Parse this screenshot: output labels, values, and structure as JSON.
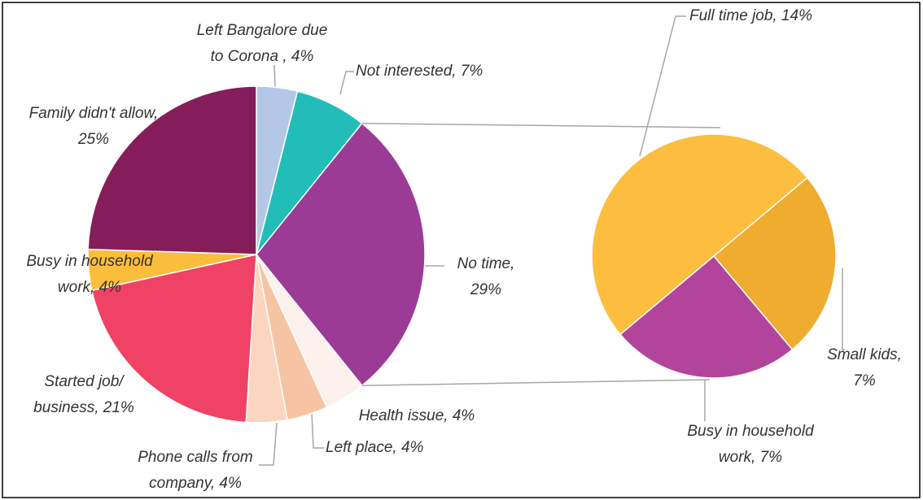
{
  "chart_data": [
    {
      "type": "pie",
      "labels": [
        [
          "Left Bangalore due",
          "to Corona , 4%"
        ],
        [
          "Not interested, 7%"
        ],
        [
          "No time,",
          "29%"
        ],
        [
          "Health issue, 4%"
        ],
        [
          "Left place, 4%"
        ],
        [
          "Phone calls from",
          "company, 4%"
        ],
        [
          "Started job/",
          "business, 21%"
        ],
        [
          "Busy in household",
          "work, 4%"
        ],
        [
          "Family didn't allow,",
          "25%"
        ]
      ],
      "values": [
        4,
        7,
        29,
        4,
        4,
        4,
        21,
        4,
        25
      ],
      "colors": [
        "#b4c7e7",
        "#23bdb9",
        "#9b3b96",
        "#fcf1ec",
        "#f7c4a3",
        "#fbd5bf",
        "#ef4264",
        "#fbbd3c",
        "#861d5b"
      ]
    },
    {
      "type": "pie",
      "labels": [
        [
          "Full time job, 14%"
        ],
        [
          "Small kids,",
          "7%"
        ],
        [
          "Busy in household",
          "work, 7%"
        ]
      ],
      "values": [
        14,
        7,
        7
      ],
      "colors": [
        "#fdbe3f",
        "#efac2e",
        "#b3449c"
      ]
    }
  ]
}
